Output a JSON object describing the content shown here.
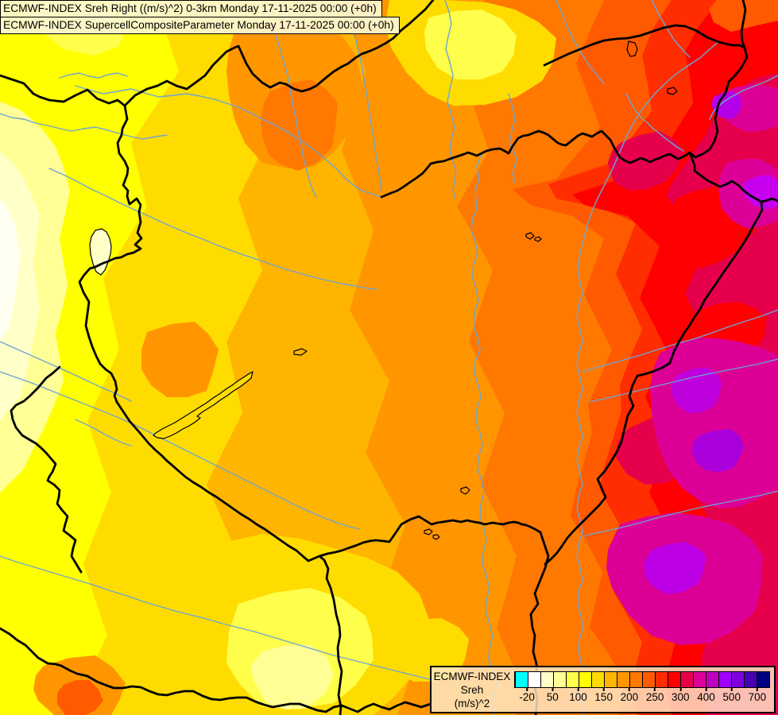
{
  "header": {
    "line1": "ECMWF-INDEX Sreh Right ((m/s)^2) 0-3km Monday 17-11-2025 00:00 (+0h)",
    "line2": "ECMWF-INDEX SupercellCompositeParameter Monday 17-11-2025 00:00 (+0h)"
  },
  "legend": {
    "title": "ECMWF-INDEX",
    "parameter": "Sreh",
    "units": "(m/s)^2",
    "background": "#F6CA9E",
    "border_color": "#000000",
    "colors": [
      "#00FFFF",
      "#FFFFFF",
      "#FFFFC8",
      "#FFFF96",
      "#FFFF4B",
      "#FFFF00",
      "#FFDC00",
      "#FFB400",
      "#FF9600",
      "#FF7800",
      "#FF5A00",
      "#FF2D00",
      "#FF0000",
      "#E6004B",
      "#DC0096",
      "#BE00BE",
      "#A000FA",
      "#7D00DC",
      "#4600B4",
      "#000082"
    ],
    "ticks": [
      {
        "label": "-20",
        "pos": 5
      },
      {
        "label": "50",
        "pos": 15
      },
      {
        "label": "100",
        "pos": 25
      },
      {
        "label": "150",
        "pos": 35
      },
      {
        "label": "200",
        "pos": 45
      },
      {
        "label": "250",
        "pos": 55
      },
      {
        "label": "300",
        "pos": 65
      },
      {
        "label": "400",
        "pos": 75
      },
      {
        "label": "500",
        "pos": 85
      },
      {
        "label": "700",
        "pos": 95
      }
    ]
  },
  "map": {
    "country_border_color": "#000000",
    "river_color": "#6FA5D2",
    "lake_outline_color": "#000000"
  }
}
